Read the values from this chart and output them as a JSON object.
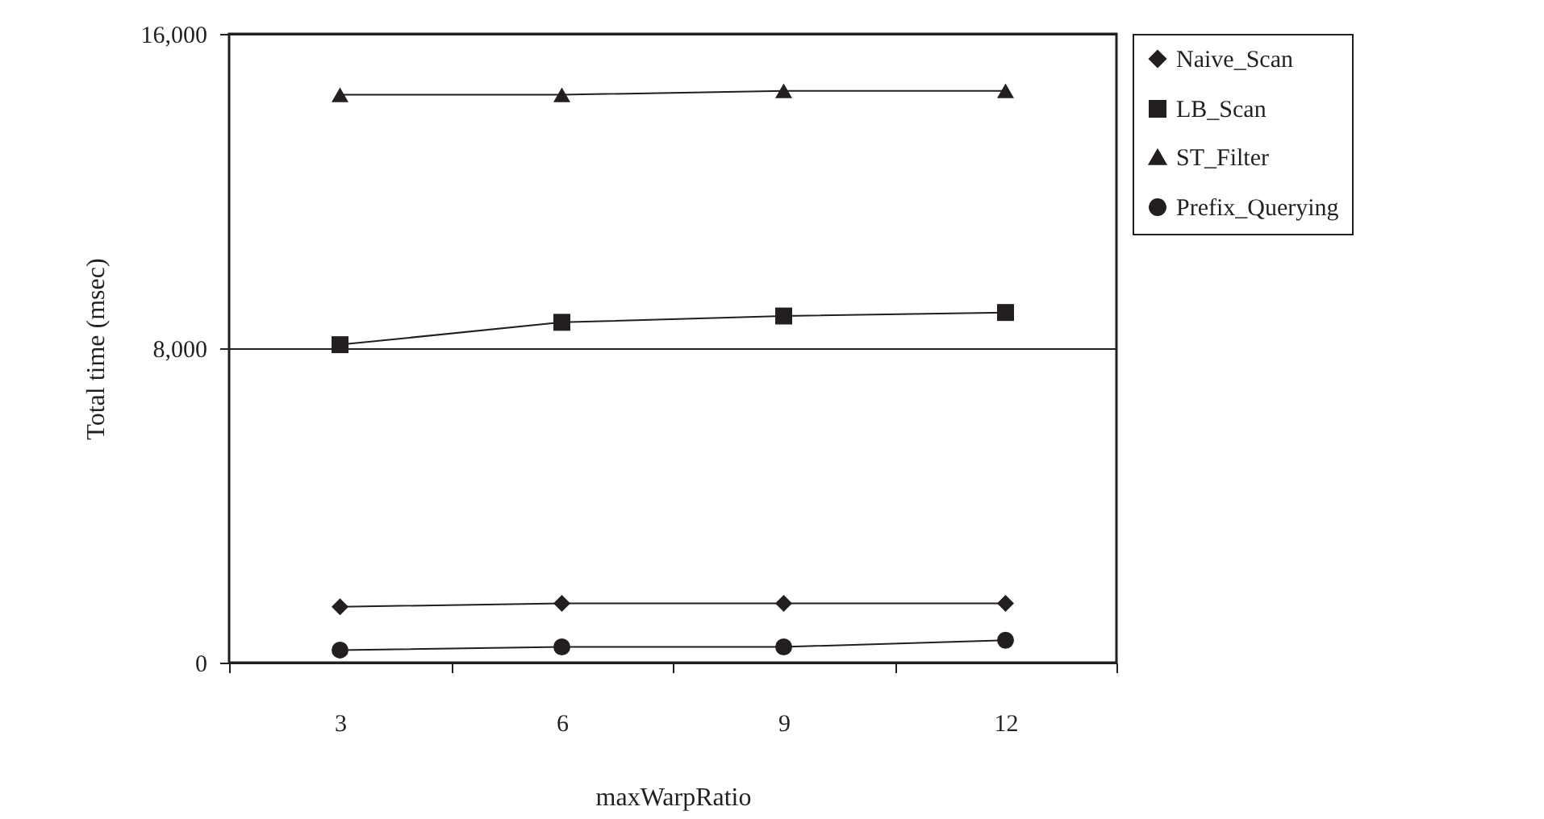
{
  "chart_data": {
    "type": "line",
    "xlabel": "maxWarpRatio",
    "ylabel": "Total time (msec)",
    "categories": [
      "3",
      "6",
      "9",
      "12"
    ],
    "series": [
      {
        "name": "Naive_Scan",
        "color": "#231f20",
        "marker": "diamond",
        "values": [
          1420,
          1510,
          1510,
          1510
        ]
      },
      {
        "name": "LB_Scan",
        "color": "#231f20",
        "marker": "square",
        "values": [
          8090,
          8660,
          8820,
          8910
        ]
      },
      {
        "name": "ST_Filter",
        "color": "#231f20",
        "marker": "triangle",
        "values": [
          14450,
          14450,
          14550,
          14550
        ]
      },
      {
        "name": "Prefix_Querying",
        "color": "#231f20",
        "marker": "circle",
        "values": [
          320,
          400,
          400,
          570
        ]
      }
    ],
    "ylim": [
      0,
      16000
    ],
    "yticks": [
      {
        "value": 0,
        "label": "0"
      },
      {
        "value": 8000,
        "label": "8,000"
      },
      {
        "value": 16000,
        "label": "16,000"
      }
    ],
    "grid": "y",
    "legend": "right",
    "line_style": "solid"
  }
}
